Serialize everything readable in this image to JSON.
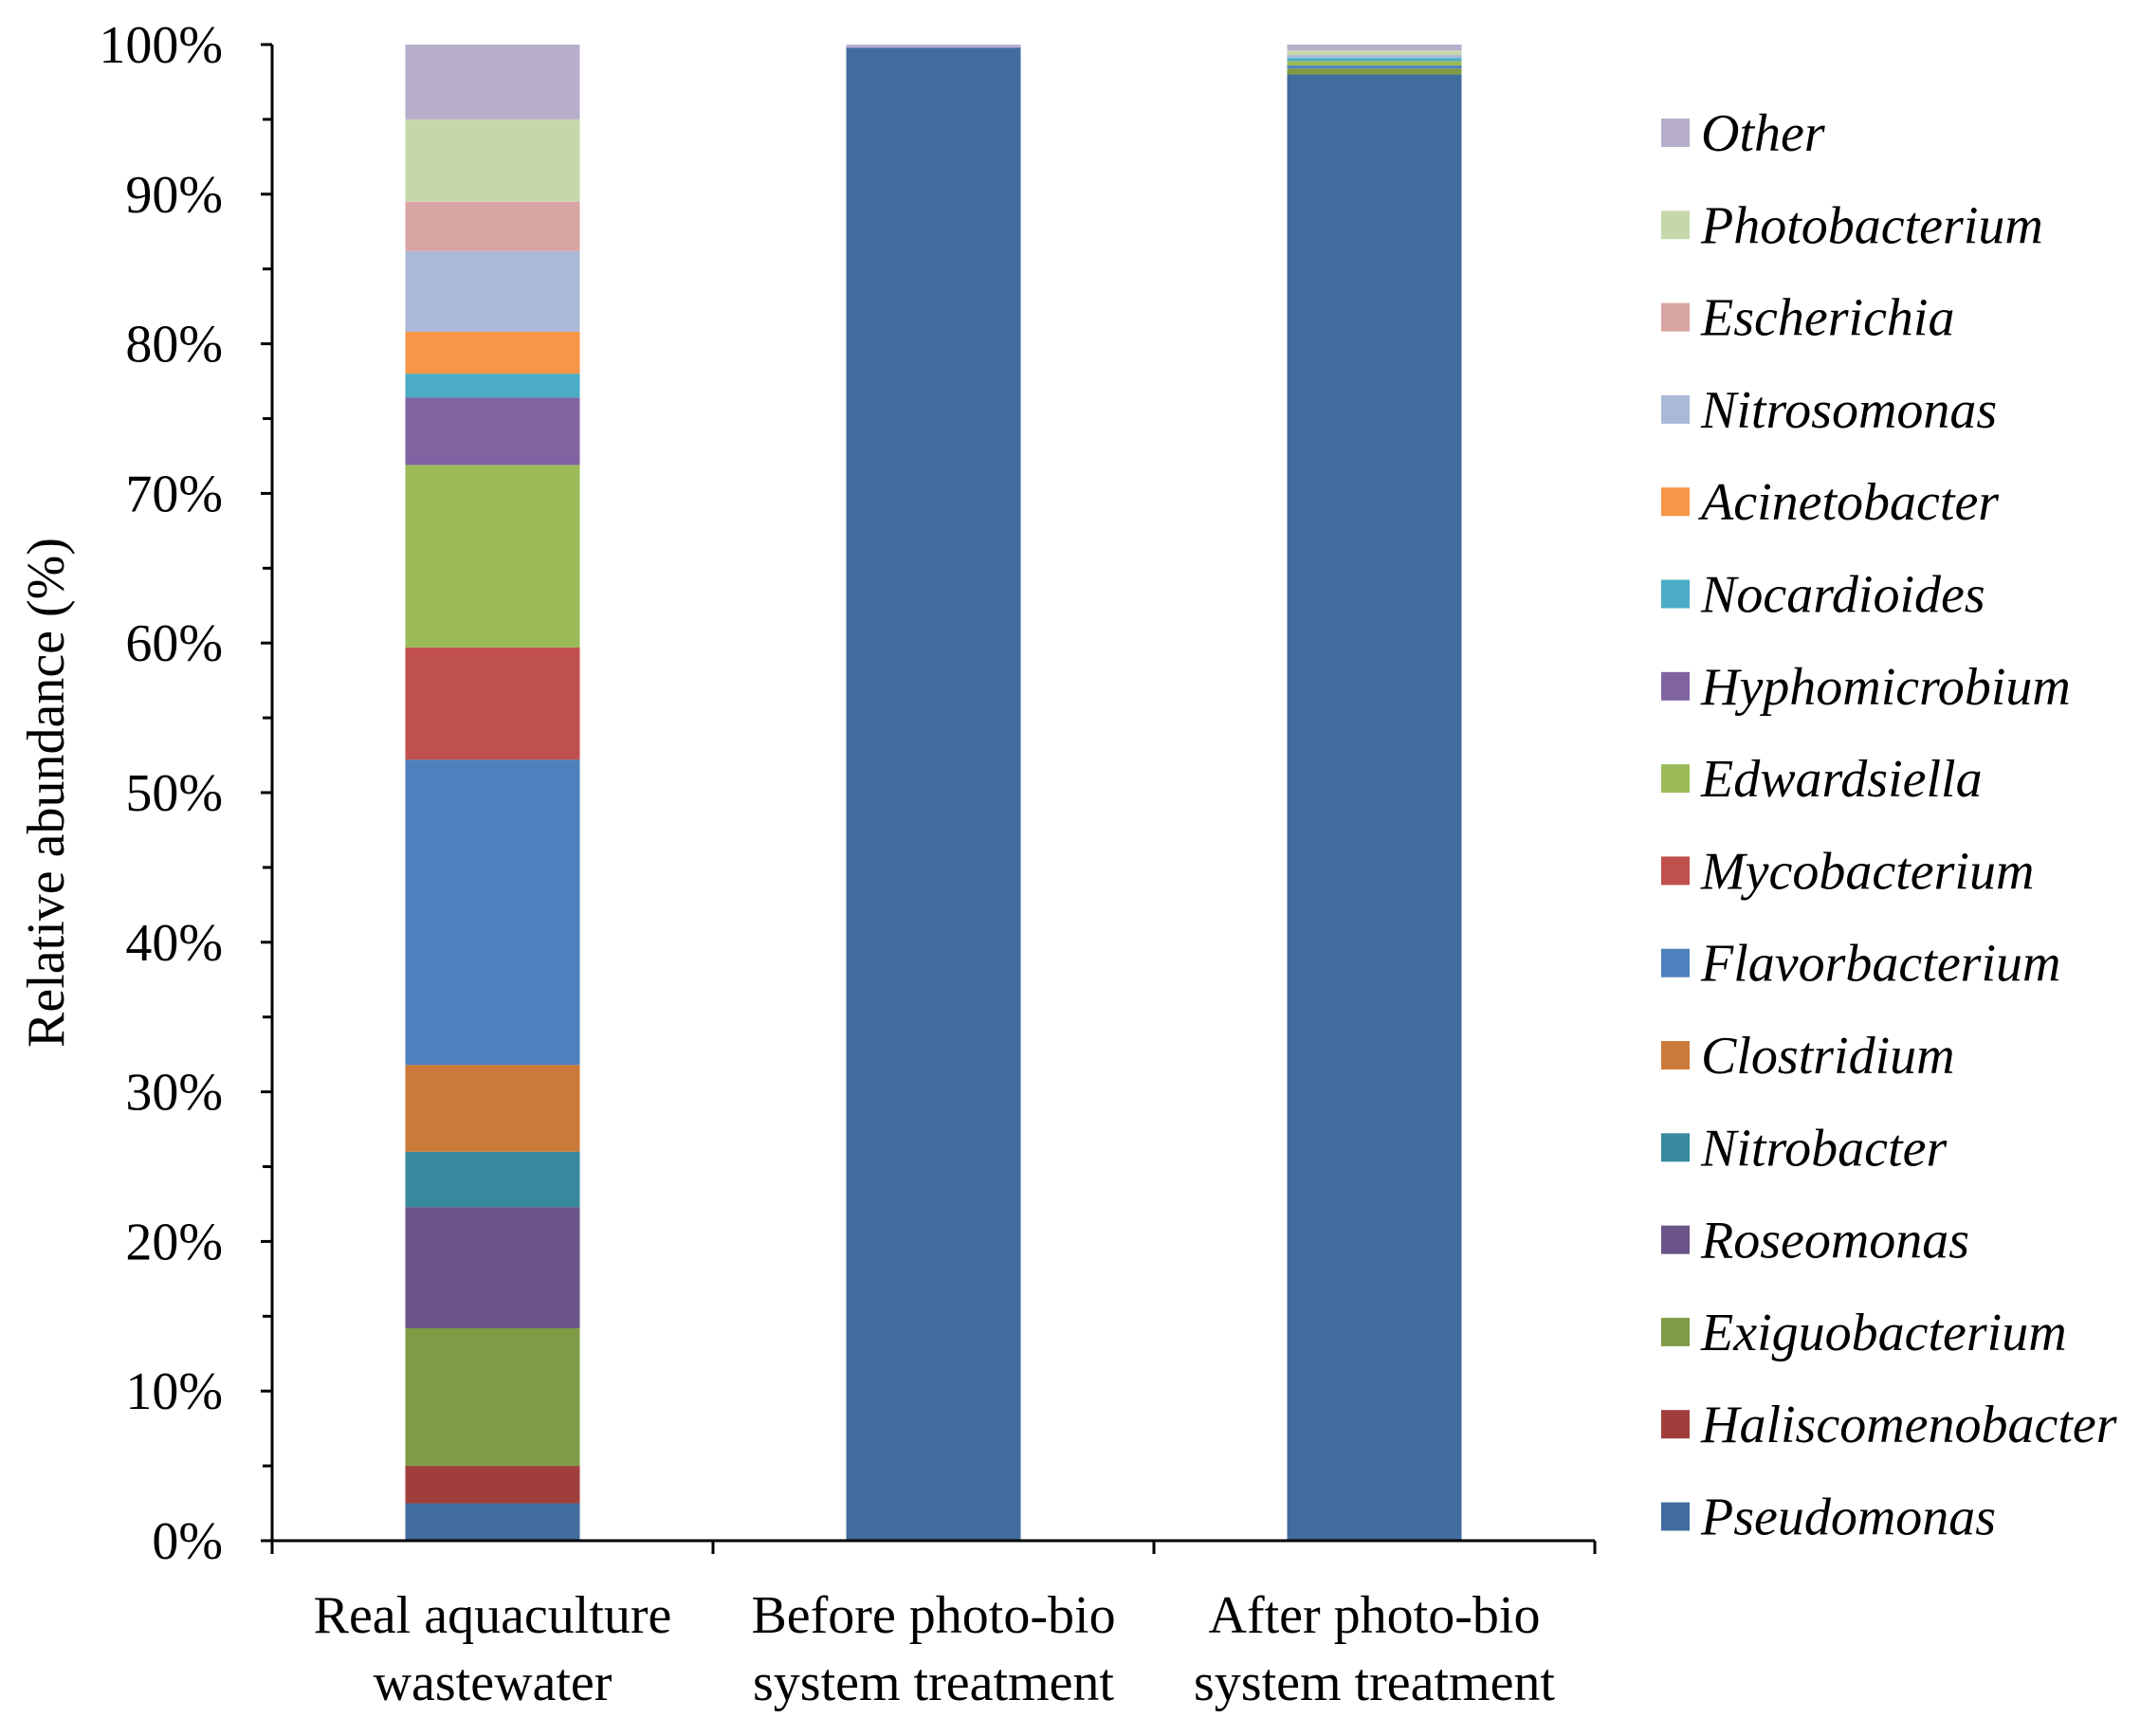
{
  "chart_data": {
    "type": "bar",
    "stacked": true,
    "title": "",
    "xlabel": "",
    "ylabel": "Relative abundance (%)",
    "ylim": [
      0,
      100
    ],
    "ytick_values": [
      0,
      10,
      20,
      30,
      40,
      50,
      60,
      70,
      80,
      90,
      100
    ],
    "ytick_labels": [
      "0%",
      "10%",
      "20%",
      "30%",
      "40%",
      "50%",
      "60%",
      "70%",
      "80%",
      "90%",
      "100%"
    ],
    "categories": [
      [
        "Real aquaculture",
        "wastewater"
      ],
      [
        "Before photo-bio",
        "system treatment"
      ],
      [
        "After photo-bio",
        "system treatment"
      ]
    ],
    "legend_position": "right",
    "series": [
      {
        "name": "Pseudomonas",
        "color": "#416C9E",
        "values": [
          2.5,
          99.8,
          98.0
        ]
      },
      {
        "name": "Haliscomenobacter",
        "color": "#A03E3B",
        "values": [
          2.5,
          0,
          0
        ]
      },
      {
        "name": "Exiguobacterium",
        "color": "#7E9B46",
        "values": [
          9.2,
          0,
          0.4
        ]
      },
      {
        "name": "Roseomonas",
        "color": "#6B5488",
        "values": [
          8.1,
          0,
          0
        ]
      },
      {
        "name": "Nitrobacter",
        "color": "#378A9E",
        "values": [
          3.7,
          0,
          0
        ]
      },
      {
        "name": "Clostridium",
        "color": "#CC7A39",
        "values": [
          5.8,
          0,
          0
        ]
      },
      {
        "name": "Flavorbacterium",
        "color": "#4D80BD",
        "values": [
          20.4,
          0,
          0.2
        ]
      },
      {
        "name": "Mycobacterium",
        "color": "#C0504D",
        "values": [
          7.5,
          0,
          0
        ]
      },
      {
        "name": "Edwardsiella",
        "color": "#9BBB59",
        "values": [
          12.2,
          0,
          0.3
        ]
      },
      {
        "name": "Hyphomicrobium",
        "color": "#8064A2",
        "values": [
          4.5,
          0,
          0
        ]
      },
      {
        "name": "Nocardioides",
        "color": "#4BACC6",
        "values": [
          1.6,
          0,
          0.2
        ]
      },
      {
        "name": "Acinetobacter",
        "color": "#F79646",
        "values": [
          2.8,
          0,
          0
        ]
      },
      {
        "name": "Nitrosomonas",
        "color": "#A9B9D6",
        "values": [
          5.4,
          0,
          0.2
        ]
      },
      {
        "name": "Escherichia",
        "color": "#D9A5A4",
        "values": [
          3.3,
          0,
          0
        ]
      },
      {
        "name": "Photobacterium",
        "color": "#C6D8AB",
        "values": [
          5.5,
          0,
          0.3
        ]
      },
      {
        "name": "Other",
        "color": "#B8AECC",
        "values": [
          5.0,
          0.2,
          0.4
        ]
      }
    ]
  }
}
